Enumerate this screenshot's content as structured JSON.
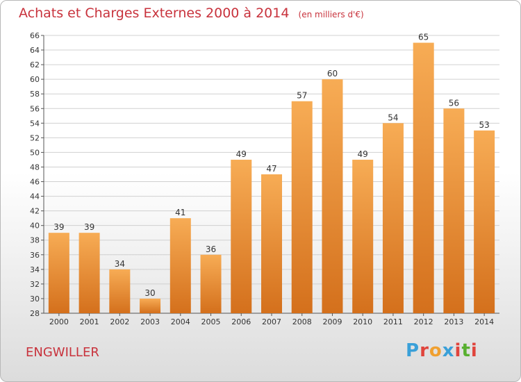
{
  "title": "Achats et Charges Externes 2000 à 2014",
  "subtitle": "(en milliers d'€)",
  "place": "ENGWILLER",
  "logo": {
    "letters": [
      "P",
      "r",
      "o",
      "x",
      "i",
      "t",
      "i"
    ],
    "colors": [
      "#3aa0d8",
      "#e0443c",
      "#f0a030",
      "#3aa0d8",
      "#e0443c",
      "#58b030",
      "#e0443c"
    ]
  },
  "colors": {
    "bar_top": "#f7ac55",
    "bar_bottom": "#d4701c",
    "title": "#c8323c",
    "grid": "#d0d0d0"
  },
  "chart_data": {
    "type": "bar",
    "categories": [
      "2000",
      "2001",
      "2002",
      "2003",
      "2004",
      "2005",
      "2006",
      "2007",
      "2008",
      "2009",
      "2010",
      "2011",
      "2012",
      "2013",
      "2014"
    ],
    "values": [
      39,
      39,
      34,
      30,
      41,
      36,
      49,
      47,
      57,
      60,
      49,
      54,
      65,
      56,
      53
    ],
    "ylim": [
      28,
      66
    ],
    "yticks": [
      28,
      30,
      32,
      34,
      36,
      38,
      40,
      42,
      44,
      46,
      48,
      50,
      52,
      54,
      56,
      58,
      60,
      62,
      64,
      66
    ],
    "grid": true,
    "legend": "none"
  }
}
